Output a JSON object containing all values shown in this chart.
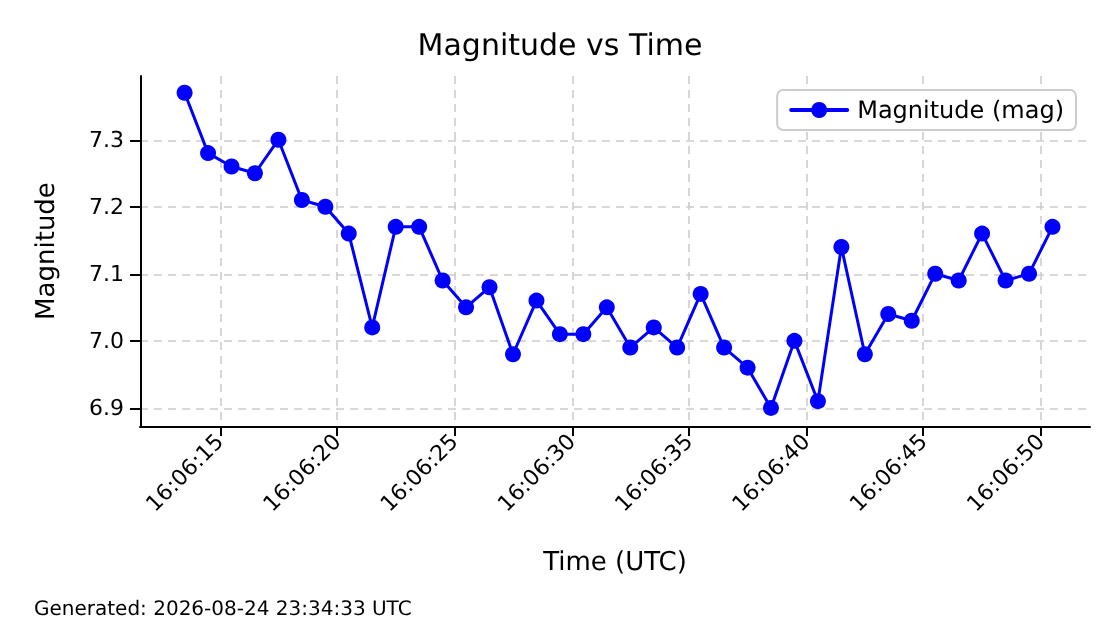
{
  "chart_data": {
    "type": "line",
    "title": "Magnitude vs Time",
    "xlabel": "Time (UTC)",
    "ylabel": "Magnitude",
    "annotations": [
      "Generated: 2026-08-24 23:34:33 UTC"
    ],
    "series": [
      {
        "name": "Magnitude (mag)",
        "color": "#0000ff",
        "x": [
          16.10375,
          16.104028,
          16.104306,
          16.104583,
          16.104861,
          16.105139,
          16.105417,
          16.105694,
          16.105972,
          16.10625,
          16.106528,
          16.106806,
          16.107083,
          16.107361,
          16.107639,
          16.107917,
          16.108194,
          16.108472,
          16.10875,
          16.109028,
          16.109306,
          16.109583,
          16.109861,
          16.110139,
          16.110417,
          16.110694,
          16.110972,
          16.11125,
          16.111528,
          16.111806,
          16.112083,
          16.112361,
          16.112639,
          16.112917,
          16.113194,
          16.113472,
          16.11375,
          16.114028
        ],
        "values": [
          7.37,
          7.28,
          7.26,
          7.25,
          7.3,
          7.21,
          7.2,
          7.16,
          7.02,
          7.17,
          7.17,
          7.09,
          7.05,
          7.08,
          6.98,
          7.06,
          7.01,
          7.01,
          7.05,
          6.99,
          7.02,
          6.99,
          7.07,
          6.99,
          6.96,
          6.9,
          7.0,
          6.91,
          7.14,
          6.98,
          7.04,
          7.03,
          7.1,
          7.09,
          7.16,
          7.09,
          7.1,
          7.17
        ]
      }
    ],
    "xlim": [
      16.103222,
      16.114472
    ],
    "xticks": [
      {
        "value": 16.104167,
        "label": "16:06:15"
      },
      {
        "value": 16.105556,
        "label": "16:06:20"
      },
      {
        "value": 16.106944,
        "label": "16:06:25"
      },
      {
        "value": 16.108333,
        "label": "16:06:30"
      },
      {
        "value": 16.109722,
        "label": "16:06:35"
      },
      {
        "value": 16.111111,
        "label": "16:06:40"
      },
      {
        "value": 16.1125,
        "label": "16:06:45"
      },
      {
        "value": 16.113889,
        "label": "16:06:50"
      }
    ],
    "ylim": [
      6.873,
      7.395
    ],
    "yticks": [
      6.9,
      {
        "value": 7,
        "label": "7.0"
      },
      7.1,
      7.2,
      7.3
    ],
    "grid": true,
    "legend": "top right",
    "marker": "circle",
    "line_style": "solid"
  }
}
